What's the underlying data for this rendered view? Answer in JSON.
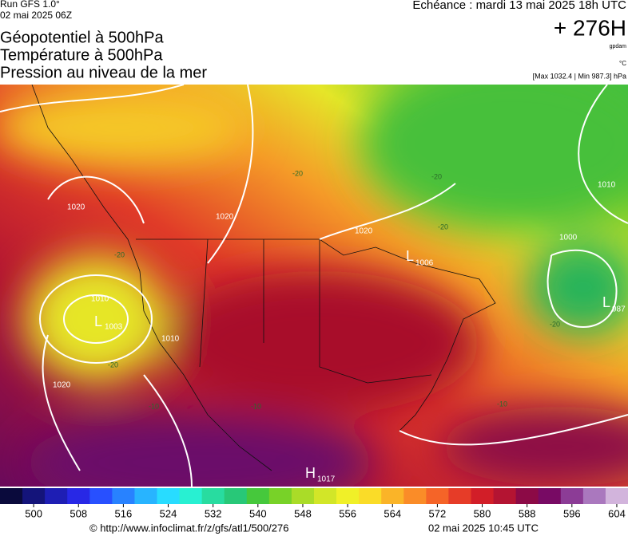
{
  "header": {
    "run": "Run GFS 1.0°",
    "run_date": "02 mai 2025 06Z",
    "titles": [
      "Géopotentiel à 500hPa",
      "Température à 500hPa",
      "Pression au niveau de la mer"
    ],
    "valid": "Echéance : mardi 13 mai 2025 18h UTC",
    "lead": "+ 276H",
    "unit_geo": "gpdam",
    "unit_temp": "°C",
    "pressure_range": "[Max 1032.4 | Min 987.3] hPa"
  },
  "map": {
    "centers": [
      {
        "kind": "L",
        "pressure": 1003
      },
      {
        "kind": "L",
        "pressure": 1006
      },
      {
        "kind": "L",
        "pressure": 987
      },
      {
        "kind": "H",
        "pressure": 1017
      }
    ],
    "contour_labels": [
      1020,
      1020,
      1020,
      1010,
      1010,
      1020,
      1010,
      1000,
      -20,
      -20,
      -20,
      -20,
      -20,
      -10,
      -10,
      -10,
      -20
    ]
  },
  "colorbar": {
    "lim": [
      494,
      606
    ],
    "ticks": [
      500,
      508,
      516,
      524,
      532,
      540,
      548,
      556,
      564,
      572,
      580,
      588,
      596,
      604
    ],
    "colors": [
      "#0a0a3c",
      "#14147a",
      "#1e1eb4",
      "#2828e6",
      "#2850ff",
      "#2882ff",
      "#28b4ff",
      "#28dcff",
      "#28f0d2",
      "#28dca0",
      "#28c878",
      "#46c83c",
      "#78d228",
      "#aadc28",
      "#d2e628",
      "#f0f028",
      "#fadc28",
      "#fab428",
      "#fa8c28",
      "#f56428",
      "#e63c28",
      "#d21e28",
      "#b41432",
      "#8c0a46",
      "#780a64",
      "#8c3c96",
      "#aa78be",
      "#d2b4dc"
    ]
  },
  "footer": {
    "source": "© http://www.infoclimat.fr/z/gfs/atl1/500/276",
    "generated": "02 mai 2025 10:45 UTC"
  }
}
